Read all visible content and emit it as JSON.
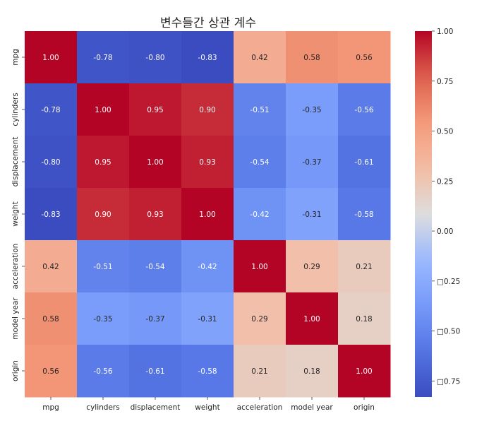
{
  "chart_data": {
    "type": "heatmap",
    "title": "변수들간 상관 계수",
    "xlabel": "",
    "ylabel": "",
    "variables": [
      "mpg",
      "cylinders",
      "displacement",
      "weight",
      "acceleration",
      "model year",
      "origin"
    ],
    "matrix": [
      [
        1.0,
        -0.78,
        -0.8,
        -0.83,
        0.42,
        0.58,
        0.56
      ],
      [
        -0.78,
        1.0,
        0.95,
        0.9,
        -0.51,
        -0.35,
        -0.56
      ],
      [
        -0.8,
        0.95,
        1.0,
        0.93,
        -0.54,
        -0.37,
        -0.61
      ],
      [
        -0.83,
        0.9,
        0.93,
        1.0,
        -0.42,
        -0.31,
        -0.58
      ],
      [
        0.42,
        -0.51,
        -0.54,
        -0.42,
        1.0,
        0.29,
        0.21
      ],
      [
        0.58,
        -0.35,
        -0.37,
        -0.31,
        0.29,
        1.0,
        0.18
      ],
      [
        0.56,
        -0.56,
        -0.61,
        -0.58,
        0.21,
        0.18,
        1.0
      ]
    ],
    "colormap": "coolwarm",
    "value_range": [
      -0.83,
      1.0
    ],
    "colorbar": {
      "ticks": [
        1.0,
        0.75,
        0.5,
        0.25,
        0.0,
        -0.25,
        -0.5,
        -0.75
      ],
      "tick_labels": [
        "1.00",
        "0.75",
        "0.50",
        "0.25",
        "0.00",
        "□0.25",
        "□0.50",
        "□0.75"
      ]
    },
    "annotation_format": "0.00",
    "grid": false,
    "legend": "colorbar-right"
  }
}
